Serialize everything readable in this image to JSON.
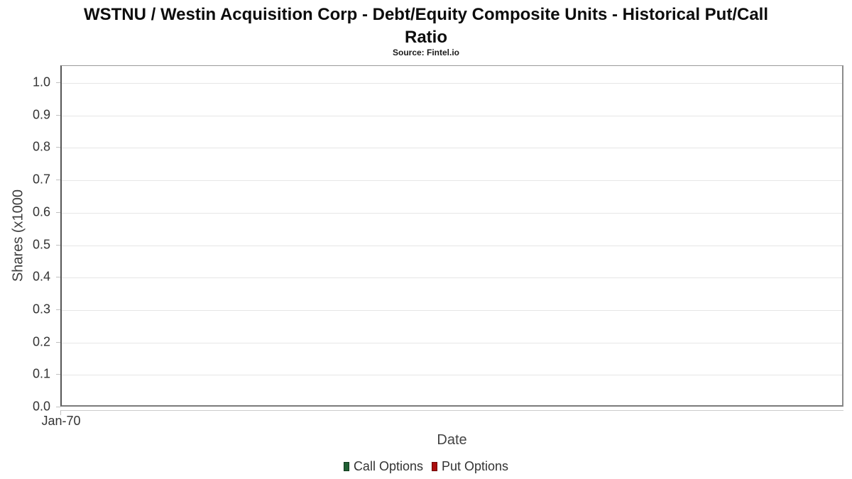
{
  "header": {
    "title_line1": "WSTNU / Westin Acquisition Corp - Debt/Equity Composite Units - Historical Put/Call",
    "title_line2": "Ratio",
    "subtitle": "Source: Fintel.io"
  },
  "axes": {
    "y_label": "Shares (x1000",
    "x_label": "Date",
    "x_tick": "Jan-70"
  },
  "legend": {
    "items": [
      {
        "label": "Call Options",
        "color": "#1f5f33",
        "border": "#123a1e"
      },
      {
        "label": "Put Options",
        "color": "#aa0e0e",
        "border": "#6e0707"
      }
    ]
  },
  "chart_data": {
    "type": "line",
    "title": "WSTNU / Westin Acquisition Corp - Debt/Equity Composite Units - Historical Put/Call Ratio",
    "subtitle": "Source: Fintel.io",
    "xlabel": "Date",
    "ylabel": "Shares (x1000",
    "x_ticks": [
      "Jan-70"
    ],
    "y_ticks": [
      "0.0",
      "0.1",
      "0.2",
      "0.3",
      "0.4",
      "0.5",
      "0.6",
      "0.7",
      "0.8",
      "0.9",
      "1.0"
    ],
    "ylim": [
      0.0,
      1.0
    ],
    "grid": true,
    "legend_position": "bottom",
    "series": [
      {
        "name": "Call Options",
        "color": "#1f5f33",
        "values": []
      },
      {
        "name": "Put Options",
        "color": "#aa0e0e",
        "values": []
      }
    ]
  }
}
